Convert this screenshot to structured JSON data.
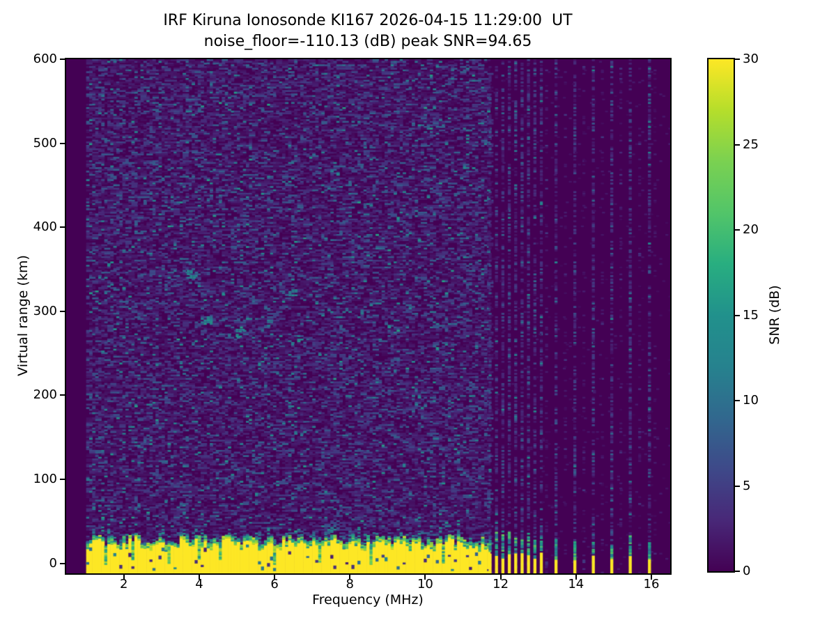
{
  "figure": {
    "title_line1": "IRF Kiruna Ionosonde KI167 2026-04-15 11:29:00  UT",
    "title_line2": "noise_floor=-110.13 (dB) peak SNR=94.65",
    "xlabel": "Frequency (MHz)",
    "ylabel": "Virtual range (km)",
    "colorbar_label": "SNR (dB)"
  },
  "chart_data": {
    "type": "heatmap",
    "title": "IRF Kiruna Ionosonde KI167 2026-04-15 11:29:00  UT",
    "subtitle": "noise_floor=-110.13 (dB) peak SNR=94.65",
    "station": "IRF Kiruna Ionosonde KI167",
    "timestamp_ut": "2026-04-15 11:29:00",
    "noise_floor_db": -110.13,
    "peak_snr_db": 94.65,
    "xlabel": "Frequency (MHz)",
    "ylabel": "Virtual range (km)",
    "colorbar_label": "SNR (dB)",
    "colormap": "viridis",
    "xlim": [
      0.47,
      16.5
    ],
    "ylim": [
      -12,
      600
    ],
    "xticks": [
      2,
      4,
      6,
      8,
      10,
      12,
      14,
      16
    ],
    "yticks": [
      0,
      100,
      200,
      300,
      400,
      500,
      600
    ],
    "colorbar_ticks": [
      0,
      5,
      10,
      15,
      20,
      25,
      30
    ],
    "snr_scale_db": [
      0,
      30
    ],
    "grid": false,
    "data": {
      "freq_start_mhz": 1.0,
      "freq_end_mhz": 16.2,
      "freq_step_mhz": 0.08,
      "range_rows": 300,
      "background_snr_db": 0,
      "ground_clutter_band": {
        "freq_range_mhz": [
          1.0,
          11.65
        ],
        "top_km_range": [
          20,
          34
        ],
        "snr_db": 30
      },
      "cluster_stripes_mhz": [
        11.72,
        11.89,
        12.06,
        12.23,
        12.4,
        12.57,
        12.74,
        12.91,
        13.08
      ],
      "sparse_stripes_mhz": [
        13.47,
        13.97,
        14.46,
        14.95,
        15.44,
        15.95
      ],
      "faint_columns_mhz": [
        13.22,
        13.72,
        14.21,
        14.7,
        15.19,
        15.69,
        16.1
      ],
      "echo_hints": [
        {
          "freq_mhz": 5.05,
          "range_km": 275
        },
        {
          "freq_mhz": 4.2,
          "range_km": 290
        },
        {
          "freq_mhz": 6.45,
          "range_km": 322
        },
        {
          "freq_mhz": 3.75,
          "range_km": 345
        }
      ],
      "seed": 1671129
    }
  },
  "colors": {
    "figure_background": "#ffffff",
    "axes_line": "#000000",
    "text": "#000000",
    "viridis_stops": [
      "#440154",
      "#482878",
      "#3e4989",
      "#31688e",
      "#26828e",
      "#21918c",
      "#28ae80",
      "#52c569",
      "#7ad151",
      "#b5de2b",
      "#fde725"
    ]
  }
}
